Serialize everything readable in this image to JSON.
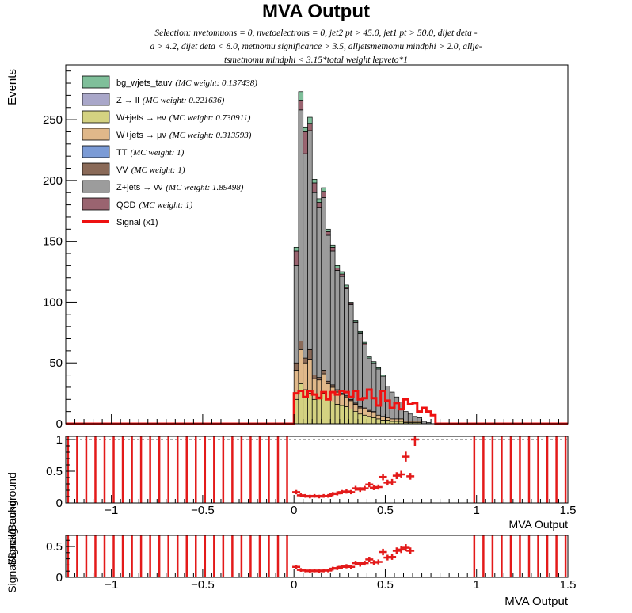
{
  "title": "MVA Output",
  "subtitle_lines": [
    "Selection: nvetomuons = 0, nvetoelectrons = 0, jet2 pt > 45.0, jet1 pt > 50.0, dijet deta -",
    "a > 4.2, dijet deta < 8.0, metnomu significance > 3.5, alljetsmetnomu mindphi > 2.0, allje-",
    "tsmetnomu mindphi < 3.15*total weight lepveto*1"
  ],
  "main_ylabel": "Events",
  "ratio_ylabel_1": "Signal/Background",
  "ratio_ylabel_2": "Signal/Background",
  "xlabel_1": "MVA Output",
  "xlabel_2": "MVA Output",
  "legend": [
    {
      "label": "bg_wjets_tauv",
      "weight": "(MC weight: 0.137438)",
      "color": "#7fbf9a",
      "kind": "fill"
    },
    {
      "label": "Z → ll",
      "weight": "(MC weight: 0.221636)",
      "color": "#a9a7c9",
      "kind": "fill"
    },
    {
      "label": "W+jets → eν",
      "weight": "(MC weight: 0.730911)",
      "color": "#d4d281",
      "kind": "fill"
    },
    {
      "label": "W+jets → μν",
      "weight": "(MC weight: 0.313593)",
      "color": "#e0b88a",
      "kind": "fill"
    },
    {
      "label": "TT",
      "weight": "(MC weight: 1)",
      "color": "#7b9bd6",
      "kind": "fill"
    },
    {
      "label": "VV",
      "weight": "(MC weight: 1)",
      "color": "#8a6a58",
      "kind": "fill"
    },
    {
      "label": "Z+jets → νν",
      "weight": "(MC weight: 1.89498)",
      "color": "#9c9c9c",
      "kind": "fill"
    },
    {
      "label": "QCD",
      "weight": "(MC weight: 1)",
      "color": "#9a6470",
      "kind": "fill"
    },
    {
      "label": "Signal (x1)",
      "weight": "",
      "color": "#ee1111",
      "kind": "line"
    }
  ],
  "chart_data": [
    {
      "type": "bar",
      "subtype": "stacked-histogram",
      "xlim": [
        -1.25,
        1.5
      ],
      "ylim": [
        0,
        295
      ],
      "bin_width": 0.025,
      "first_bin_low_edge": 0.0,
      "x_ticks": [
        -1,
        -0.5,
        0,
        0.5,
        1,
        1.5
      ],
      "y_ticks": [
        0,
        50,
        100,
        150,
        200,
        250
      ],
      "stack_order": [
        "W+jets → eν",
        "W+jets → μν",
        "VV",
        "Z+jets → νν",
        "QCD",
        "bg_wjets_tauv"
      ],
      "series": [
        {
          "name": "W+jets → eν",
          "color": "#d4d281",
          "values": [
            20,
            33,
            28,
            25,
            20,
            22,
            25,
            20,
            18,
            16,
            15,
            14,
            12,
            10,
            8,
            7,
            6,
            5,
            4,
            3,
            3,
            2,
            2,
            2,
            1,
            1,
            1,
            1,
            0,
            0,
            0,
            0
          ]
        },
        {
          "name": "W+jets → μν",
          "color": "#e0b88a",
          "values": [
            24,
            28,
            22,
            28,
            17,
            14,
            16,
            13,
            12,
            10,
            9,
            8,
            7,
            6,
            5,
            5,
            4,
            4,
            3,
            3,
            2,
            2,
            2,
            2,
            1,
            1,
            1,
            1,
            0,
            0,
            0,
            0
          ]
        },
        {
          "name": "VV",
          "color": "#8a6a58",
          "values": [
            6,
            7,
            4,
            8,
            3,
            2,
            3,
            2,
            2,
            2,
            1,
            1,
            1,
            1,
            1,
            1,
            1,
            1,
            0,
            0,
            0,
            0,
            0,
            0,
            0,
            0,
            0,
            0,
            0,
            0,
            0,
            0
          ]
        },
        {
          "name": "Z+jets → νν",
          "color": "#9c9c9c",
          "values": [
            80,
            190,
            168,
            180,
            150,
            140,
            142,
            120,
            110,
            98,
            96,
            88,
            78,
            66,
            60,
            52,
            43,
            40,
            38,
            33,
            26,
            22,
            18,
            14,
            8,
            6,
            4,
            3,
            2,
            1,
            0,
            0
          ]
        },
        {
          "name": "QCD",
          "color": "#9a6470",
          "values": [
            12,
            8,
            18,
            6,
            8,
            4,
            5,
            3,
            3,
            2,
            2,
            1,
            1,
            1,
            1,
            1,
            0,
            0,
            0,
            0,
            0,
            0,
            0,
            0,
            0,
            0,
            0,
            0,
            0,
            0,
            0,
            0
          ]
        },
        {
          "name": "bg_wjets_tauv",
          "color": "#7fbf9a",
          "values": [
            3,
            7,
            4,
            5,
            3,
            3,
            3,
            2,
            2,
            2,
            2,
            2,
            1,
            1,
            1,
            1,
            1,
            1,
            1,
            1,
            0,
            0,
            0,
            0,
            0,
            0,
            0,
            0,
            0,
            0,
            0,
            0
          ]
        },
        {
          "name": "Signal (x1)",
          "color": "#ee1111",
          "style": "line",
          "values": [
            25,
            27,
            22,
            27,
            24,
            21,
            26,
            20,
            26,
            24,
            27,
            26,
            22,
            27,
            20,
            21,
            28,
            21,
            15,
            27,
            19,
            13,
            17,
            12,
            20,
            16,
            17,
            10,
            13,
            10,
            7,
            0
          ]
        }
      ]
    },
    {
      "type": "scatter",
      "subtype": "ratio-errorbars",
      "xlim": [
        -1.25,
        1.5
      ],
      "ylim": [
        0,
        1.05
      ],
      "x_ticks": [
        -1,
        -0.5,
        0,
        0.5,
        1,
        1.5
      ],
      "y_ticks": [
        0,
        0.5,
        1
      ],
      "reference_line": 1,
      "x": [
        0.0125,
        0.0375,
        0.0625,
        0.0875,
        0.1125,
        0.1375,
        0.1625,
        0.1875,
        0.2125,
        0.2375,
        0.2625,
        0.2875,
        0.3125,
        0.3375,
        0.3625,
        0.3875,
        0.4125,
        0.4375,
        0.4625,
        0.4875,
        0.5125,
        0.5375,
        0.5625,
        0.5875,
        0.6125,
        0.6375,
        0.6625
      ],
      "y": [
        0.17,
        0.12,
        0.11,
        0.1,
        0.11,
        0.1,
        0.11,
        0.11,
        0.14,
        0.15,
        0.17,
        0.18,
        0.17,
        0.23,
        0.21,
        0.23,
        0.29,
        0.24,
        0.25,
        0.41,
        0.32,
        0.33,
        0.43,
        0.45,
        0.73,
        0.42,
        1.0
      ],
      "empty_bins_full_range": true
    },
    {
      "type": "scatter",
      "subtype": "ratio-errorbars",
      "xlim": [
        -1.25,
        1.5
      ],
      "ylim": [
        0,
        0.68
      ],
      "x_ticks": [
        -1,
        -0.5,
        0,
        0.5,
        1,
        1.5
      ],
      "y_ticks": [
        0,
        0.5
      ],
      "x": [
        0.0125,
        0.0375,
        0.0625,
        0.0875,
        0.1125,
        0.1375,
        0.1625,
        0.1875,
        0.2125,
        0.2375,
        0.2625,
        0.2875,
        0.3125,
        0.3375,
        0.3625,
        0.3875,
        0.4125,
        0.4375,
        0.4625,
        0.4875,
        0.5125,
        0.5375,
        0.5625,
        0.5875,
        0.6125,
        0.6375
      ],
      "y": [
        0.17,
        0.12,
        0.11,
        0.1,
        0.11,
        0.1,
        0.11,
        0.11,
        0.14,
        0.15,
        0.17,
        0.18,
        0.17,
        0.23,
        0.21,
        0.23,
        0.29,
        0.24,
        0.25,
        0.41,
        0.32,
        0.33,
        0.43,
        0.45,
        0.48,
        0.43
      ],
      "empty_bins_full_range": true
    }
  ]
}
